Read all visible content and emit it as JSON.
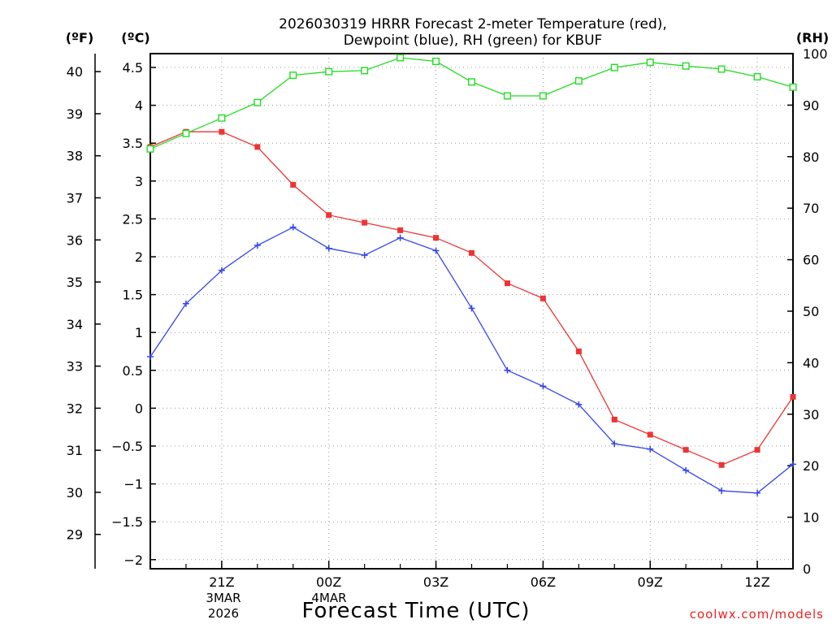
{
  "chart_data": {
    "type": "line",
    "title_line1": "2026030319 HRRR Forecast 2-meter Temperature (red),",
    "title_line2": "Dewpoint (blue), RH (green) for KBUF",
    "xlabel": "Forecast Time (UTC)",
    "ylabel_f": "(ºF)",
    "ylabel_c": "(ºC)",
    "ylabel_rh": "(RH)",
    "credit": "coolwx.com/models",
    "date_label_month": "3MAR",
    "date_label_year": "2026",
    "date_label_next": "4MAR",
    "x_hours_from_19z": [
      0,
      1,
      2,
      3,
      4,
      5,
      6,
      7,
      8,
      9,
      10,
      11,
      12,
      13,
      14,
      15,
      16,
      17,
      18
    ],
    "x_ticks": [
      {
        "hour": 2,
        "label": "21Z"
      },
      {
        "hour": 5,
        "label": "00Z"
      },
      {
        "hour": 8,
        "label": "03Z"
      },
      {
        "hour": 11,
        "label": "06Z"
      },
      {
        "hour": 14,
        "label": "09Z"
      },
      {
        "hour": 17,
        "label": "12Z"
      }
    ],
    "ylim_c": [
      -2.1,
      4.7
    ],
    "yticks_c": [
      "4.5",
      "4",
      "3.5",
      "3",
      "2.5",
      "2",
      "1.5",
      "1",
      "0.5",
      "0",
      "−0.5",
      "−1",
      "−1.5",
      "−2"
    ],
    "yticks_c_values": [
      4.5,
      4,
      3.5,
      3,
      2.5,
      2,
      1.5,
      1,
      0.5,
      0,
      -0.5,
      -1,
      -1.5,
      -2
    ],
    "yticks_f": [
      "40",
      "39",
      "38",
      "37",
      "36",
      "35",
      "34",
      "33",
      "32",
      "31",
      "30",
      "29"
    ],
    "yticks_f_values": [
      40,
      39,
      38,
      37,
      36,
      35,
      34,
      33,
      32,
      31,
      30,
      29
    ],
    "ylim_rh": [
      0,
      100
    ],
    "yticks_rh": [
      "100",
      "90",
      "80",
      "70",
      "60",
      "50",
      "40",
      "30",
      "20",
      "10",
      "0"
    ],
    "yticks_rh_values": [
      100,
      90,
      80,
      70,
      60,
      50,
      40,
      30,
      20,
      10,
      0
    ],
    "grid": true,
    "series": [
      {
        "name": "Temperature",
        "color": "#ee3333",
        "axis": "c",
        "marker": "filled-square",
        "values": [
          3.45,
          3.65,
          3.65,
          3.45,
          2.95,
          2.55,
          2.45,
          2.35,
          2.25,
          2.05,
          1.65,
          1.45,
          0.75,
          -0.15,
          -0.35,
          -0.55,
          -0.75,
          -0.55,
          0.15
        ]
      },
      {
        "name": "Dewpoint",
        "color": "#3344ee",
        "axis": "c",
        "marker": "plus",
        "values": [
          0.68,
          1.38,
          1.82,
          2.15,
          2.39,
          2.11,
          2.02,
          2.25,
          2.08,
          1.32,
          0.5,
          0.29,
          0.05,
          -0.47,
          -0.54,
          -0.82,
          -1.09,
          -1.12,
          -0.74
        ]
      },
      {
        "name": "RH",
        "color": "#22dd22",
        "axis": "rh",
        "marker": "open-square",
        "values": [
          81.5,
          84.5,
          87.5,
          90.5,
          95.8,
          96.5,
          96.7,
          99.2,
          98.5,
          94.5,
          91.8,
          91.8,
          94.7,
          97.3,
          98.3,
          97.6,
          97.0,
          95.5,
          93.5
        ]
      }
    ]
  }
}
